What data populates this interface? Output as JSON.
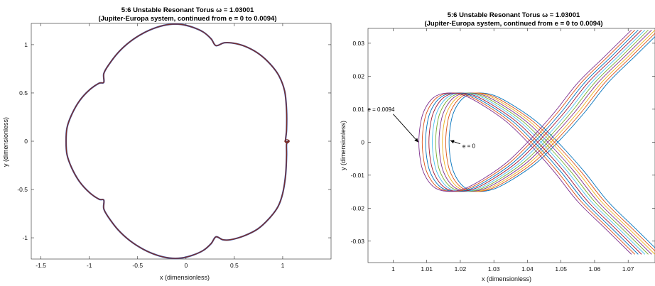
{
  "chart_data": [
    {
      "type": "line",
      "title": "5:6 Unstable Resonant Torus ω = 1.03001",
      "subtitle": "(Jupiter-Europa system, continued from e = 0 to 0.0094)",
      "xlabel": "x (dimensionless)",
      "ylabel": "y (dimensionless)",
      "xlim": [
        -1.6,
        1.5
      ],
      "ylim": [
        -1.22,
        1.22
      ],
      "xticks": [
        -1.5,
        -1,
        -0.5,
        0,
        0.5,
        1
      ],
      "xtick_labels": [
        "-1.5",
        "-1",
        "-0.5",
        "0",
        "0.5",
        "1"
      ],
      "yticks": [
        -1,
        -0.5,
        0,
        0.5,
        1
      ],
      "ytick_labels": [
        "-1",
        "-0.5",
        "0",
        "0.5",
        "1"
      ],
      "grid": false,
      "series": [
        {
          "style": "closed-curve",
          "color": "#7b2d26",
          "points": [
            [
              0.31,
              0.99
            ],
            [
              0.4,
              1.02
            ],
            [
              0.52,
              1.01
            ],
            [
              0.64,
              0.97
            ],
            [
              0.76,
              0.9
            ],
            [
              0.87,
              0.8
            ],
            [
              0.96,
              0.68
            ],
            [
              1.02,
              0.52
            ],
            [
              1.04,
              0.32
            ],
            [
              1.04,
              0.12
            ],
            [
              1.03,
              0.0
            ],
            [
              1.06,
              0.0
            ],
            [
              1.04,
              -0.03
            ],
            [
              1.04,
              -0.15
            ],
            [
              1.03,
              -0.35
            ],
            [
              1.0,
              -0.54
            ],
            [
              0.95,
              -0.68
            ],
            [
              0.86,
              -0.8
            ],
            [
              0.74,
              -0.91
            ],
            [
              0.6,
              -0.98
            ],
            [
              0.46,
              -1.02
            ],
            [
              0.38,
              -1.02
            ],
            [
              0.31,
              -0.99
            ],
            [
              0.26,
              -1.06
            ],
            [
              0.18,
              -1.13
            ],
            [
              0.07,
              -1.18
            ],
            [
              -0.05,
              -1.21
            ],
            [
              -0.17,
              -1.21
            ],
            [
              -0.3,
              -1.18
            ],
            [
              -0.44,
              -1.12
            ],
            [
              -0.58,
              -1.03
            ],
            [
              -0.7,
              -0.92
            ],
            [
              -0.8,
              -0.79
            ],
            [
              -0.85,
              -0.7
            ],
            [
              -0.85,
              -0.61
            ],
            [
              -0.9,
              -0.6
            ],
            [
              -1.0,
              -0.53
            ],
            [
              -1.1,
              -0.42
            ],
            [
              -1.18,
              -0.28
            ],
            [
              -1.23,
              -0.14
            ],
            [
              -1.24,
              0.0
            ],
            [
              -1.23,
              0.14
            ],
            [
              -1.18,
              0.28
            ],
            [
              -1.1,
              0.42
            ],
            [
              -1.0,
              0.53
            ],
            [
              -0.9,
              0.6
            ],
            [
              -0.85,
              0.61
            ],
            [
              -0.85,
              0.7
            ],
            [
              -0.8,
              0.79
            ],
            [
              -0.7,
              0.92
            ],
            [
              -0.58,
              1.03
            ],
            [
              -0.44,
              1.12
            ],
            [
              -0.3,
              1.18
            ],
            [
              -0.17,
              1.21
            ],
            [
              -0.05,
              1.21
            ],
            [
              0.07,
              1.18
            ],
            [
              0.18,
              1.13
            ],
            [
              0.26,
              1.06
            ]
          ]
        }
      ]
    },
    {
      "type": "line",
      "title": "5:6 Unstable Resonant Torus ω = 1.03001",
      "subtitle": "(Jupiter-Europa system, continued from e = 0 to 0.0094)",
      "xlabel": "x (dimensionless)",
      "ylabel": "y (dimensionless)",
      "xlim": [
        0.9925,
        1.078
      ],
      "ylim": [
        -0.0365,
        0.0345
      ],
      "xticks": [
        1,
        1.01,
        1.02,
        1.03,
        1.04,
        1.05,
        1.06,
        1.07
      ],
      "xtick_labels": [
        "1",
        "1.01",
        "1.02",
        "1.03",
        "1.04",
        "1.05",
        "1.06",
        "1.07"
      ],
      "yticks": [
        -0.03,
        -0.02,
        -0.01,
        0,
        0.01,
        0.02,
        0.03
      ],
      "ytick_labels": [
        "-0.03",
        "-0.02",
        "-0.01",
        "0",
        "0.01",
        "0.02",
        "0.03"
      ],
      "grid": false,
      "family": {
        "count": 10,
        "e_range": [
          0,
          0.0094
        ],
        "colors": [
          "#0072bd",
          "#d95319",
          "#edb120",
          "#7e2f8e",
          "#77ac30",
          "#4dbeee",
          "#a2142f",
          "#0072bd",
          "#d95319",
          "#7e2f8e"
        ],
        "x_shift_per_member": -0.001,
        "base_curve": [
          [
            1.08,
            0.034
          ],
          [
            1.072,
            0.026
          ],
          [
            1.064,
            0.018
          ],
          [
            1.057,
            0.009
          ],
          [
            1.05,
            0.001
          ],
          [
            1.043,
            -0.006
          ],
          [
            1.036,
            -0.011
          ],
          [
            1.03,
            -0.0142
          ],
          [
            1.025,
            -0.0149
          ],
          [
            1.021,
            -0.0135
          ],
          [
            1.018,
            -0.009
          ],
          [
            1.0168,
            -0.003
          ],
          [
            1.0168,
            0.003
          ],
          [
            1.018,
            0.009
          ],
          [
            1.021,
            0.0135
          ],
          [
            1.025,
            0.0149
          ],
          [
            1.03,
            0.0142
          ],
          [
            1.036,
            0.011
          ],
          [
            1.043,
            0.006
          ],
          [
            1.05,
            -0.001
          ],
          [
            1.057,
            -0.009
          ],
          [
            1.064,
            -0.018
          ],
          [
            1.072,
            -0.026
          ],
          [
            1.08,
            -0.034
          ]
        ]
      },
      "annotations": [
        {
          "text": "e = 0.0094",
          "arrow_from": [
            1.0,
            0.0085
          ],
          "arrow_to": [
            1.0075,
            0.0
          ]
        },
        {
          "text": "e = 0",
          "arrow_from": [
            1.02,
            -0.0005
          ],
          "arrow_to": [
            1.017,
            0.0005
          ]
        }
      ]
    }
  ]
}
